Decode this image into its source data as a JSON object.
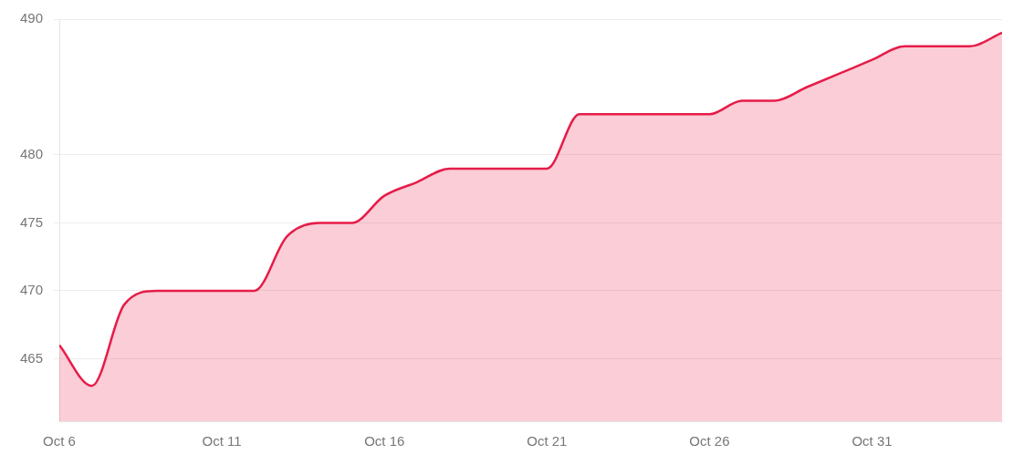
{
  "chart_data": {
    "type": "area",
    "x": [
      "--10-06",
      "--10-07",
      "--10-08",
      "--10-09",
      "--10-10",
      "--10-11",
      "--10-12",
      "--10-13",
      "--10-14",
      "--10-15",
      "--10-16",
      "--10-17",
      "--10-18",
      "--10-19",
      "--10-20",
      "--10-21",
      "--10-22",
      "--10-23",
      "--10-24",
      "--10-25",
      "--10-26",
      "--10-27",
      "--10-28",
      "--10-29",
      "--10-30",
      "--10-31",
      "--11-01",
      "--11-02",
      "--11-03",
      "--11-04"
    ],
    "series": [
      {
        "color": "#e61c48",
        "values": [
          466,
          463,
          469,
          470,
          470,
          470,
          470,
          474,
          475,
          475,
          477,
          478,
          479,
          479,
          479,
          479,
          483,
          483,
          483,
          483,
          483,
          484,
          484,
          485,
          486,
          487,
          488,
          488,
          488,
          489
        ]
      }
    ],
    "xlim": [
      "--10-06",
      "--11-04"
    ],
    "xticks": [
      {
        "value": "--10-06",
        "label": "Oct 6"
      },
      {
        "value": "--10-11",
        "label": "Oct 11"
      },
      {
        "value": "--10-16",
        "label": "Oct 16"
      },
      {
        "value": "--10-21",
        "label": "Oct 21"
      },
      {
        "value": "--10-26",
        "label": "Oct 26"
      },
      {
        "value": "--10-31",
        "label": "Oct 31"
      }
    ],
    "ylim": [
      460.4,
      490
    ],
    "yticks": [
      465,
      470,
      475,
      480,
      490
    ],
    "grid": "y",
    "legend": false,
    "marker": "none",
    "line_style": "solid"
  }
}
